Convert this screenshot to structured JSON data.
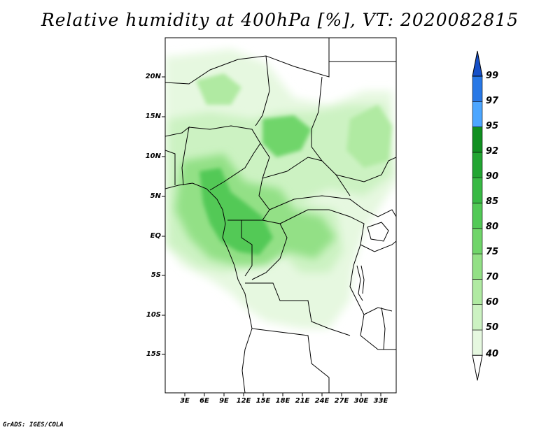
{
  "title": "Relative humidity at 400hPa [%], VT: 2020082815",
  "credit": "GrADS: IGES/COLA",
  "map": {
    "lon_range": [
      0,
      35
    ],
    "lat_range": [
      -20,
      25
    ],
    "lat_ticks": [
      "20N",
      "15N",
      "10N",
      "5N",
      "EQ",
      "5S",
      "10S",
      "15S"
    ],
    "lon_ticks": [
      "3E",
      "6E",
      "9E",
      "12E",
      "15E",
      "18E",
      "21E",
      "24E",
      "27E",
      "30E",
      "33E"
    ]
  },
  "colorbar": {
    "levels": [
      "40",
      "50",
      "60",
      "70",
      "75",
      "80",
      "85",
      "90",
      "92",
      "95",
      "97",
      "99"
    ],
    "colors": [
      "#ffffff",
      "#e6f8e0",
      "#ccf2c2",
      "#b0eaa2",
      "#93e086",
      "#70d56a",
      "#52c956",
      "#38b944",
      "#22a532",
      "#108f20",
      "#4ca6ff",
      "#2878e6",
      "#1650c8"
    ]
  }
}
